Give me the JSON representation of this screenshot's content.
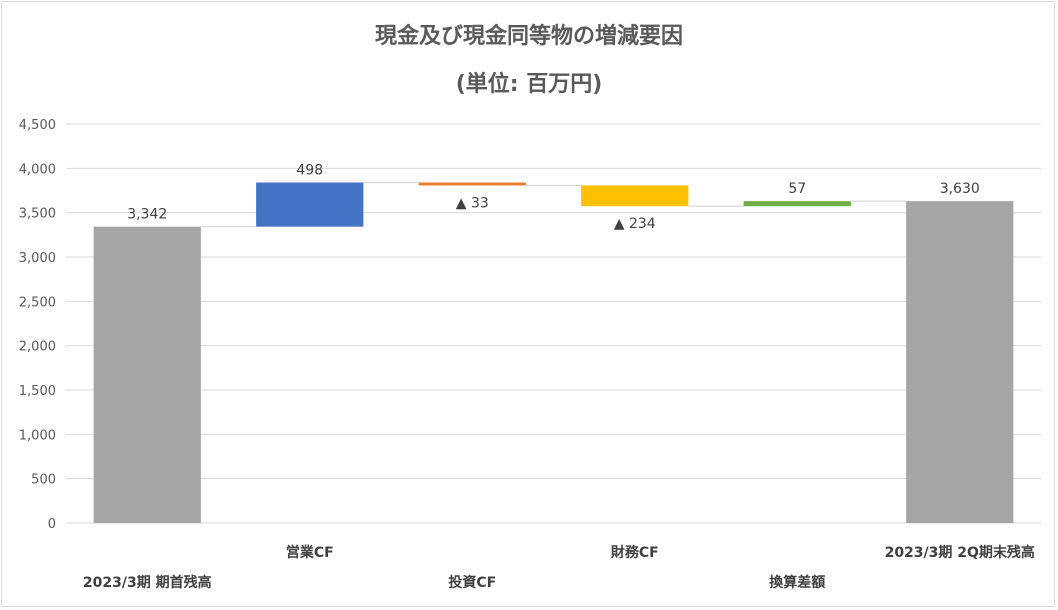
{
  "chart_data": {
    "type": "bar",
    "subtype": "waterfall",
    "title": "現金及び現金同等物の増減要因",
    "subtitle": "(単位: 百万円)",
    "categories": [
      "2023/3期 期首残高",
      "営業CF",
      "投資CF",
      "財務CF",
      "換算差額",
      "2023/3期 2Q期末残高"
    ],
    "values": [
      3342,
      498,
      -33,
      -234,
      57,
      3630
    ],
    "data_labels": [
      "3,342",
      "498",
      "▲ 33",
      "▲ 234",
      "57",
      "3,630"
    ],
    "bar_kind": [
      "total",
      "delta",
      "delta",
      "delta",
      "delta",
      "total"
    ],
    "colors": [
      "#a5a5a5",
      "#4472c4",
      "#ed7d31",
      "#ffc000",
      "#70ad47",
      "#a5a5a5"
    ],
    "ylim": [
      0,
      4500
    ],
    "yticks": [
      0,
      500,
      1000,
      1500,
      2000,
      2500,
      3000,
      3500,
      4000,
      4500
    ],
    "ytick_labels": [
      "0",
      "500",
      "1,000",
      "1,500",
      "2,000",
      "2,500",
      "3,000",
      "3,500",
      "4,000",
      "4,500"
    ],
    "grid": true,
    "legend": "none"
  }
}
